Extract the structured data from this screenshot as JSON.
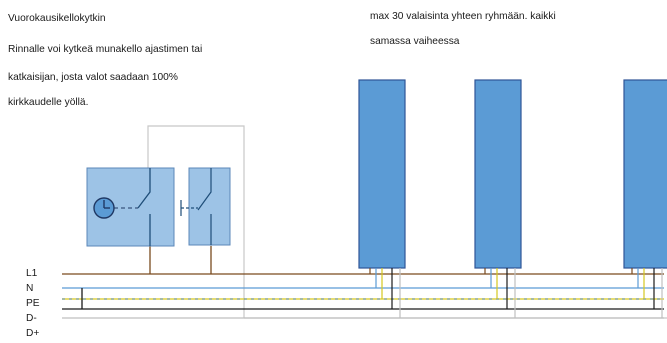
{
  "notes": {
    "left": [
      "Vuorokausikellokytkin",
      "Rinnalle voi kytkeä munakello ajastimen tai",
      "katkaisijan, josta valot saadaan 100%",
      "kirkkaudelle yöllä."
    ],
    "right": [
      "max 30 valaisinta yhteen ryhmään. kaikki",
      "samassa vaiheessa"
    ]
  },
  "bus": {
    "labels": [
      "L1",
      "N",
      "PE",
      "D-",
      "D+"
    ],
    "colors": {
      "L1": "#7a4a1e",
      "N": "#5b9bd5",
      "PE": "#d6c81f",
      "PE_dash": "#2b6cb0",
      "D-": "#1a1a1a",
      "D+": "#bfbfbf"
    }
  },
  "devices": {
    "timer_switch": {
      "icon": "clock-icon",
      "fill": "#9dc3e6",
      "stroke": "#5b87b8"
    },
    "push_button": {
      "icon": "push-button-icon",
      "fill": "#9dc3e6",
      "stroke": "#5b87b8"
    }
  },
  "luminaires": {
    "count_shown": 3,
    "fill": "#5b9bd5",
    "stroke": "#2f5597"
  }
}
